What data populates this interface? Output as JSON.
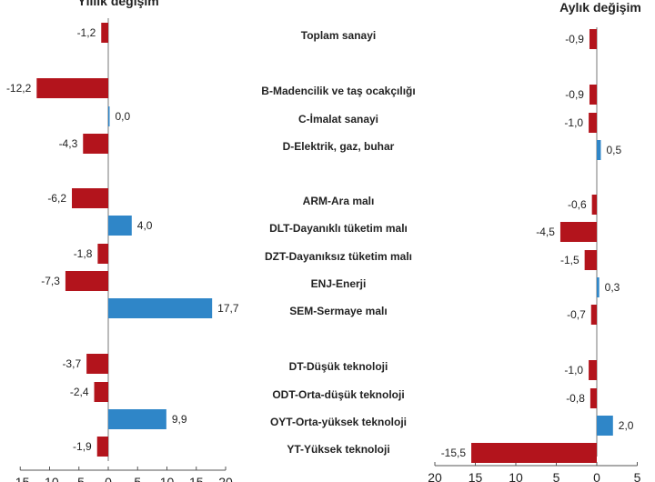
{
  "chart_data": [
    {
      "type": "bar",
      "orientation": "horizontal",
      "title": "Yıllık değişim",
      "categories": [
        "Toplam sanayi",
        "B-Madencilik ve taş ocakçılığı",
        "C-İmalat sanayi",
        "D-Elektrik, gaz, buhar",
        "ARM-Ara malı",
        "DLT-Dayanıklı tüketim malı",
        "DZT-Dayanıksız tüketim malı",
        "ENJ-Enerji",
        "SEM-Sermaye malı",
        "DT-Düşük teknoloji",
        "ODT-Orta-düşük teknoloji",
        "OYT-Orta-yüksek teknoloji",
        "YT-Yüksek teknoloji"
      ],
      "values": [
        -1.2,
        -12.2,
        0.0,
        -4.3,
        -6.2,
        4.0,
        -1.8,
        -7.3,
        17.7,
        -3.7,
        -2.4,
        9.9,
        -1.9
      ],
      "labels": [
        "-1,2",
        "-12,2",
        "0,0",
        "-4,3",
        "-6,2",
        "4,0",
        "-1,8",
        "-7,3",
        "17,7",
        "-3,7",
        "-2,4",
        "9,9",
        "-1,9"
      ],
      "xlim": [
        -15,
        20
      ],
      "ticks": [
        "-15",
        "-10",
        "-5",
        "0",
        "5",
        "10",
        "15",
        "20"
      ],
      "grid": false,
      "colors": {
        "negative": "#b3141c",
        "positive": "#2f86c8"
      }
    },
    {
      "type": "bar",
      "orientation": "horizontal",
      "title": "Aylık değişim",
      "categories": [
        "Toplam sanayi",
        "B-Madencilik ve taş ocakçılığı",
        "C-İmalat sanayi",
        "D-Elektrik, gaz, buhar",
        "ARM-Ara malı",
        "DLT-Dayanıklı tüketim malı",
        "DZT-Dayanıksız tüketim malı",
        "ENJ-Enerji",
        "SEM-Sermaye malı",
        "DT-Düşük teknoloji",
        "ODT-Orta-düşük teknoloji",
        "OYT-Orta-yüksek teknoloji",
        "YT-Yüksek teknoloji"
      ],
      "values": [
        -0.9,
        -0.9,
        -1.0,
        0.5,
        -0.6,
        -4.5,
        -1.5,
        0.3,
        -0.7,
        -1.0,
        -0.8,
        2.0,
        -15.5
      ],
      "labels": [
        "-0,9",
        "-0,9",
        "-1,0",
        "0,5",
        "-0,6",
        "-4,5",
        "-1,5",
        "0,3",
        "-0,7",
        "-1,0",
        "-0,8",
        "2,0",
        "-15,5"
      ],
      "xlim": [
        -20,
        5
      ],
      "ticks": [
        "20",
        "15",
        "10",
        "5",
        "0",
        "5"
      ],
      "grid": false,
      "colors": {
        "negative": "#b3141c",
        "positive": "#2f86c8"
      }
    }
  ]
}
